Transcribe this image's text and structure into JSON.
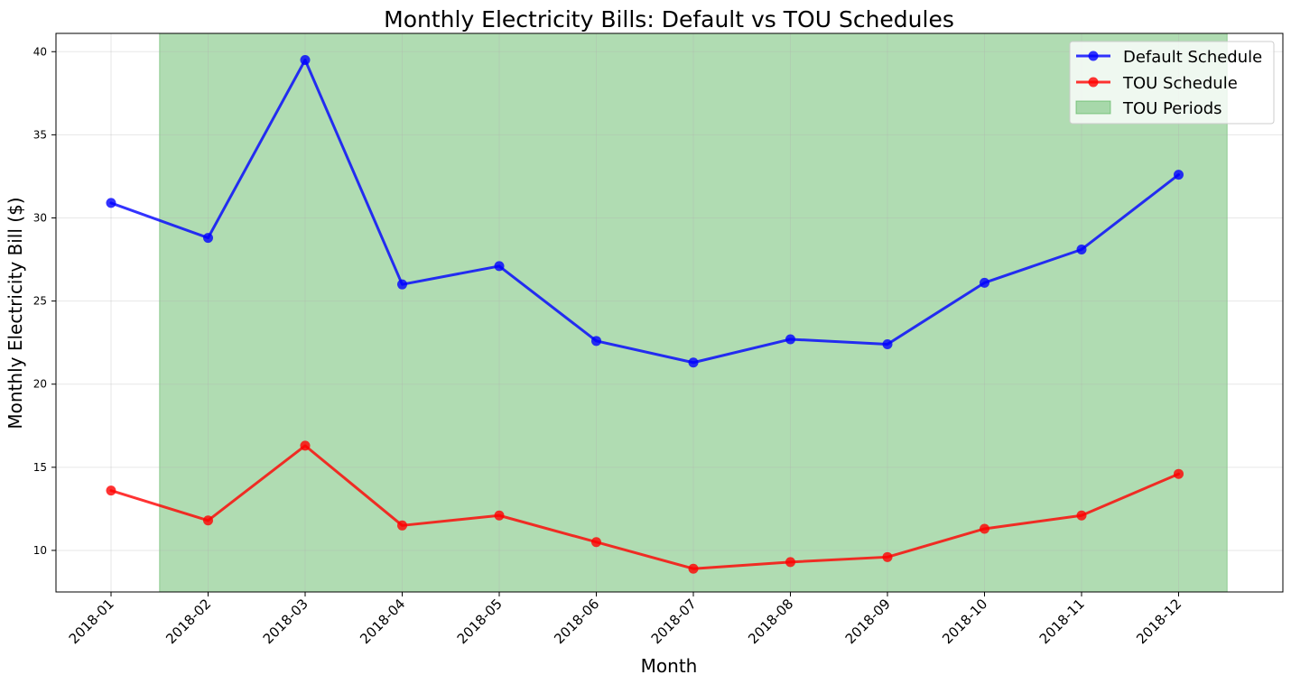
{
  "chart_data": {
    "type": "line",
    "title": "Monthly Electricity Bills: Default vs TOU Schedules",
    "xlabel": "Month",
    "ylabel": "Monthly Electricity Bill ($)",
    "categories": [
      "2018-01",
      "2018-02",
      "2018-03",
      "2018-04",
      "2018-05",
      "2018-06",
      "2018-07",
      "2018-08",
      "2018-09",
      "2018-10",
      "2018-11",
      "2018-12"
    ],
    "yticks": [
      "10",
      "15",
      "20",
      "25",
      "30",
      "35",
      "40"
    ],
    "ylim": [
      7.5,
      41.1
    ],
    "grid": true,
    "legend_position": "top-right",
    "series": [
      {
        "name": "Default Schedule",
        "color": "#0000ff",
        "marker": "circle",
        "values": [
          30.9,
          28.8,
          39.5,
          26.0,
          27.1,
          22.6,
          21.3,
          22.7,
          22.4,
          26.1,
          28.1,
          32.6
        ]
      },
      {
        "name": "TOU Schedule",
        "color": "#ff0000",
        "marker": "circle",
        "values": [
          13.6,
          11.8,
          16.3,
          11.5,
          12.1,
          10.5,
          8.9,
          9.3,
          9.6,
          11.3,
          12.1,
          14.6
        ]
      }
    ],
    "shaded_region": {
      "name": "TOU Periods",
      "color": "#4caf50",
      "from_category": "2018-02",
      "to_category": "2018-12",
      "extends_half_step": true
    }
  }
}
